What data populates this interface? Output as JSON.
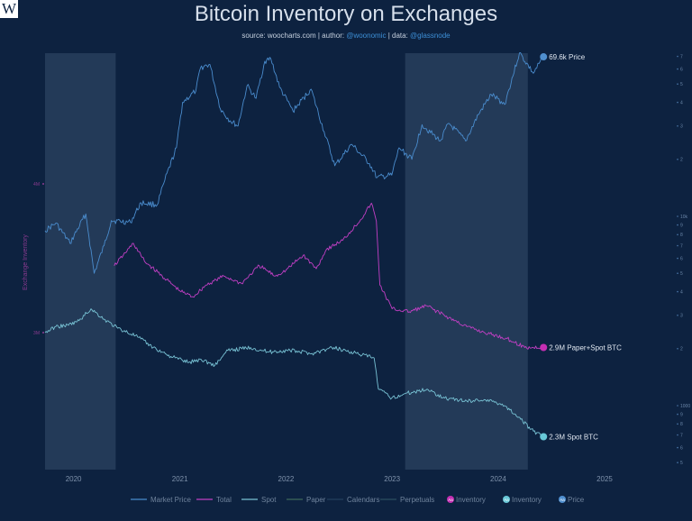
{
  "logo": {
    "letter": "W"
  },
  "header": {
    "title": "Bitcoin Inventory on Exchanges",
    "source_label": "source:",
    "source": "woocharts.com",
    "author_label": "| author:",
    "author": "@woonomic",
    "data_label": "| data:",
    "data": "@glassnode"
  },
  "colors": {
    "background": "#0d2240",
    "price": "#4a8ccd",
    "total": "#c23fc4",
    "spot": "#78c2d4",
    "shade": "#233a58",
    "paper": "#3e6a5a",
    "calendars": "#23405c",
    "perpetuals": "#2c5060",
    "inventory_dot": "#c42fb2",
    "spot_dot": "#68c8d8",
    "price_dot": "#4f8fcf"
  },
  "chart_data": {
    "type": "line",
    "title": "Bitcoin Inventory on Exchanges",
    "x_ticks": [
      "2020",
      "2021",
      "2022",
      "2023",
      "2024",
      "2025"
    ],
    "xlim": [
      "2019-09-25",
      "2025-04-01"
    ],
    "ylabel": "Exchange Inventory",
    "left_ticks": [
      {
        "label": "4M",
        "value": 4000000
      },
      {
        "label": "3M",
        "value": 3000000
      }
    ],
    "right_ticks": [
      "7",
      "6",
      "5",
      "4",
      "3",
      "2",
      "10k",
      "9",
      "8",
      "7",
      "6",
      "5",
      "4",
      "3",
      "2",
      "1000",
      "9",
      "8",
      "7",
      "6",
      "5"
    ],
    "shaded_ranges": [
      [
        "2019-09-25",
        "2020-05-25"
      ],
      [
        "2023-02-15",
        "2024-04-12"
      ]
    ],
    "series": [
      {
        "name": "Market Price",
        "color": "#4a8ccd",
        "end_label": "69.6k Price",
        "points": [
          [
            "2019-09-25",
            8400
          ],
          [
            "2019-11-01",
            9200
          ],
          [
            "2019-12-20",
            7200
          ],
          [
            "2020-02-12",
            10300
          ],
          [
            "2020-03-12",
            5000
          ],
          [
            "2020-04-15",
            7000
          ],
          [
            "2020-05-10",
            9500
          ],
          [
            "2020-07-15",
            9300
          ],
          [
            "2020-08-20",
            11800
          ],
          [
            "2020-10-15",
            11500
          ],
          [
            "2020-11-10",
            15500
          ],
          [
            "2020-12-20",
            23000
          ],
          [
            "2021-01-10",
            40000
          ],
          [
            "2021-02-25",
            46000
          ],
          [
            "2021-03-13",
            61000
          ],
          [
            "2021-04-14",
            63500
          ],
          [
            "2021-05-20",
            37000
          ],
          [
            "2021-06-22",
            32000
          ],
          [
            "2021-07-20",
            30000
          ],
          [
            "2021-08-20",
            49000
          ],
          [
            "2021-09-20",
            42000
          ],
          [
            "2021-10-20",
            66000
          ],
          [
            "2021-11-10",
            68000
          ],
          [
            "2021-12-10",
            48000
          ],
          [
            "2022-01-25",
            36000
          ],
          [
            "2022-03-28",
            47000
          ],
          [
            "2022-05-12",
            28000
          ],
          [
            "2022-06-18",
            18500
          ],
          [
            "2022-08-15",
            24000
          ],
          [
            "2022-10-15",
            19000
          ],
          [
            "2022-11-10",
            16000
          ],
          [
            "2022-12-31",
            16500
          ],
          [
            "2023-01-25",
            23000
          ],
          [
            "2023-03-10",
            20000
          ],
          [
            "2023-04-14",
            30500
          ],
          [
            "2023-06-15",
            25000
          ],
          [
            "2023-07-15",
            31000
          ],
          [
            "2023-09-11",
            25000
          ],
          [
            "2023-10-25",
            34500
          ],
          [
            "2023-12-08",
            44000
          ],
          [
            "2024-01-23",
            39000
          ],
          [
            "2024-03-14",
            73000
          ],
          [
            "2024-05-01",
            57000
          ],
          [
            "2024-06-05",
            69600
          ]
        ]
      },
      {
        "name": "Total",
        "color": "#c23fc4",
        "end_label": "2.9M Paper+Spot BTC",
        "points": [
          [
            "2020-05-20",
            3450000
          ],
          [
            "2020-06-20",
            3520000
          ],
          [
            "2020-07-25",
            3600000
          ],
          [
            "2020-09-01",
            3480000
          ],
          [
            "2020-11-01",
            3380000
          ],
          [
            "2021-01-01",
            3280000
          ],
          [
            "2021-02-15",
            3240000
          ],
          [
            "2021-04-01",
            3320000
          ],
          [
            "2021-06-01",
            3380000
          ],
          [
            "2021-08-01",
            3330000
          ],
          [
            "2021-10-01",
            3450000
          ],
          [
            "2021-11-25",
            3380000
          ],
          [
            "2022-01-01",
            3420000
          ],
          [
            "2022-03-01",
            3520000
          ],
          [
            "2022-04-15",
            3430000
          ],
          [
            "2022-05-20",
            3560000
          ],
          [
            "2022-07-15",
            3620000
          ],
          [
            "2022-09-15",
            3760000
          ],
          [
            "2022-10-22",
            3870000
          ],
          [
            "2022-11-08",
            3750000
          ],
          [
            "2022-11-20",
            3320000
          ],
          [
            "2023-01-01",
            3160000
          ],
          [
            "2023-03-01",
            3140000
          ],
          [
            "2023-05-01",
            3180000
          ],
          [
            "2023-07-15",
            3100000
          ],
          [
            "2023-09-15",
            3040000
          ],
          [
            "2023-11-15",
            3000000
          ],
          [
            "2024-02-01",
            2960000
          ],
          [
            "2024-04-01",
            2900000
          ],
          [
            "2024-06-05",
            2900000
          ]
        ]
      },
      {
        "name": "Spot",
        "color": "#78c2d4",
        "end_label": "2.3M Spot BTC",
        "points": [
          [
            "2019-09-25",
            3000000
          ],
          [
            "2019-11-01",
            3040000
          ],
          [
            "2019-12-15",
            3050000
          ],
          [
            "2020-01-20",
            3080000
          ],
          [
            "2020-03-01",
            3160000
          ],
          [
            "2020-04-15",
            3090000
          ],
          [
            "2020-06-01",
            3030000
          ],
          [
            "2020-08-01",
            2980000
          ],
          [
            "2020-10-01",
            2900000
          ],
          [
            "2020-12-01",
            2840000
          ],
          [
            "2021-02-01",
            2800000
          ],
          [
            "2021-03-15",
            2820000
          ],
          [
            "2021-05-01",
            2780000
          ],
          [
            "2021-06-15",
            2880000
          ],
          [
            "2021-09-01",
            2900000
          ],
          [
            "2021-11-01",
            2870000
          ],
          [
            "2022-01-15",
            2880000
          ],
          [
            "2022-04-01",
            2860000
          ],
          [
            "2022-06-15",
            2900000
          ],
          [
            "2022-09-01",
            2860000
          ],
          [
            "2022-10-31",
            2830000
          ],
          [
            "2022-11-15",
            2620000
          ],
          [
            "2022-12-31",
            2560000
          ],
          [
            "2023-02-15",
            2590000
          ],
          [
            "2023-05-01",
            2620000
          ],
          [
            "2023-07-01",
            2560000
          ],
          [
            "2023-09-15",
            2540000
          ],
          [
            "2023-11-15",
            2550000
          ],
          [
            "2024-01-15",
            2520000
          ],
          [
            "2024-03-15",
            2430000
          ],
          [
            "2024-04-20",
            2350000
          ],
          [
            "2024-06-05",
            2300000
          ]
        ]
      }
    ],
    "legend": {
      "placement": "bottom",
      "items": [
        {
          "label": "Market Price",
          "color": "#4a8ccd",
          "kind": "line"
        },
        {
          "label": "Total",
          "color": "#c23fc4",
          "kind": "line"
        },
        {
          "label": "Spot",
          "color": "#78c2d4",
          "kind": "line"
        },
        {
          "label": "Paper",
          "color": "#3e6a5a",
          "kind": "line"
        },
        {
          "label": "Calendars",
          "color": "#23405c",
          "kind": "line"
        },
        {
          "label": "Perpetuals",
          "color": "#2c5060",
          "kind": "line"
        },
        {
          "label": "Inventory",
          "color": "#c42fb2",
          "kind": "marker"
        },
        {
          "label": "Inventory",
          "color": "#68c8d8",
          "kind": "marker"
        },
        {
          "label": "Price",
          "color": "#4f8fcf",
          "kind": "marker"
        }
      ]
    }
  }
}
